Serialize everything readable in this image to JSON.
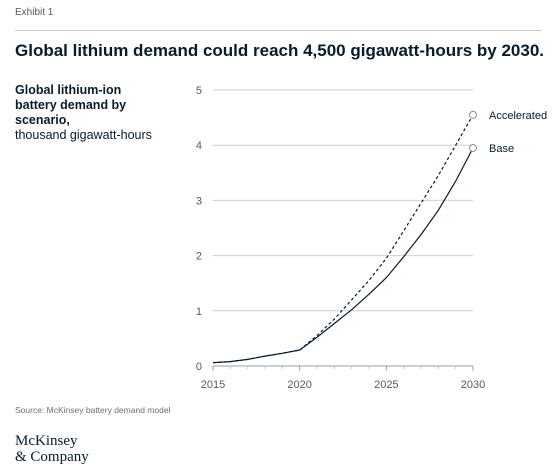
{
  "exhibit_label": "Exhibit 1",
  "headline": "Global lithium demand could reach 4,500 gigawatt-hours by 2030.",
  "chart_title_bold": "Global lithium-ion battery demand by scenario,",
  "chart_title_unit": "thousand gigawatt-hours",
  "source": "Source: McKinsey battery demand model",
  "logo": {
    "line1": "McKinsey",
    "line2": "& Company"
  },
  "chart_data": {
    "type": "line",
    "title": "Global lithium-ion battery demand by scenario, thousand gigawatt-hours",
    "xlabel": "",
    "ylabel": "",
    "xlim": [
      2015,
      2030
    ],
    "ylim": [
      0,
      5
    ],
    "x_ticks": [
      2015,
      2020,
      2025,
      2030
    ],
    "y_ticks": [
      0,
      1,
      2,
      3,
      4,
      5
    ],
    "grid": "horizontal",
    "legend": "end-of-line labels",
    "series": [
      {
        "name": "Accelerated",
        "style": "dashed",
        "x": [
          2015,
          2016,
          2017,
          2018,
          2019,
          2020,
          2021,
          2022,
          2023,
          2024,
          2025,
          2026,
          2027,
          2028,
          2029,
          2030
        ],
        "values": [
          0.06,
          0.08,
          0.12,
          0.18,
          0.23,
          0.29,
          0.55,
          0.85,
          1.2,
          1.55,
          1.95,
          2.45,
          2.95,
          3.45,
          4.0,
          4.55
        ]
      },
      {
        "name": "Base",
        "style": "solid",
        "x": [
          2015,
          2016,
          2017,
          2018,
          2019,
          2020,
          2021,
          2022,
          2023,
          2024,
          2025,
          2026,
          2027,
          2028,
          2029,
          2030
        ],
        "values": [
          0.06,
          0.08,
          0.12,
          0.18,
          0.23,
          0.29,
          0.52,
          0.77,
          1.02,
          1.3,
          1.6,
          1.98,
          2.38,
          2.82,
          3.35,
          3.95
        ]
      }
    ],
    "colors": {
      "line": "#051c2c",
      "grid": "#d0d0d0",
      "axis_text": "#555a60"
    }
  }
}
